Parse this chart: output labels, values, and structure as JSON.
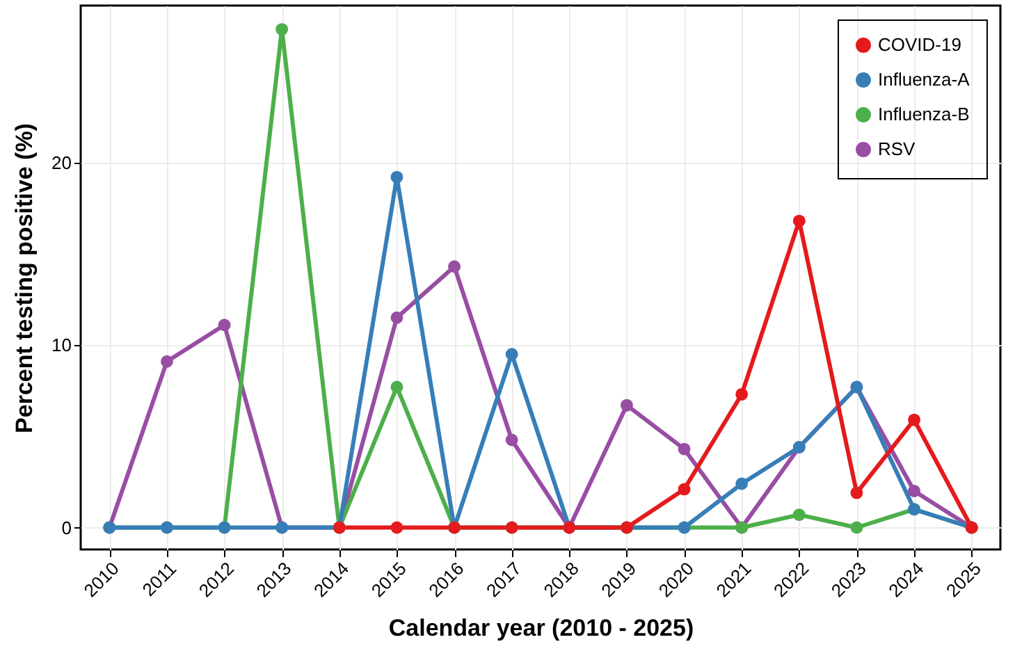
{
  "chart_data": {
    "type": "line",
    "xlabel": "Calendar year (2010 - 2025)",
    "ylabel": "Percent testing positive (%)",
    "categories": [
      "2010",
      "2011",
      "2012",
      "2013",
      "2014",
      "2015",
      "2016",
      "2017",
      "2018",
      "2019",
      "2020",
      "2021",
      "2022",
      "2023",
      "2024",
      "2025"
    ],
    "series": [
      {
        "name": "COVID-19",
        "color": "#e41a1c",
        "values": [
          null,
          null,
          null,
          null,
          0,
          0,
          0,
          0,
          0,
          0,
          2.1,
          7.3,
          16.8,
          1.9,
          5.9,
          0
        ]
      },
      {
        "name": "Influenza-A",
        "color": "#377eb8",
        "values": [
          0,
          0,
          0,
          0,
          0,
          19.2,
          0,
          9.5,
          0,
          0,
          0,
          2.4,
          4.4,
          7.7,
          1.0,
          0
        ]
      },
      {
        "name": "Influenza-B",
        "color": "#4daf4a",
        "values": [
          0,
          0,
          0,
          27.3,
          0,
          7.7,
          0,
          0,
          0,
          0,
          0,
          0,
          0.7,
          0,
          1.0,
          0
        ]
      },
      {
        "name": "RSV",
        "color": "#984ea3",
        "values": [
          0,
          9.1,
          11.1,
          0,
          0,
          11.5,
          14.3,
          4.8,
          0,
          6.7,
          4.3,
          0,
          4.4,
          7.7,
          2.0,
          0
        ]
      }
    ],
    "ylim": [
      -1.2,
      28.6
    ],
    "yticks": [
      0,
      10,
      20
    ],
    "grid": true,
    "legend": "top right",
    "marker": "circle",
    "line_style": "solid"
  }
}
